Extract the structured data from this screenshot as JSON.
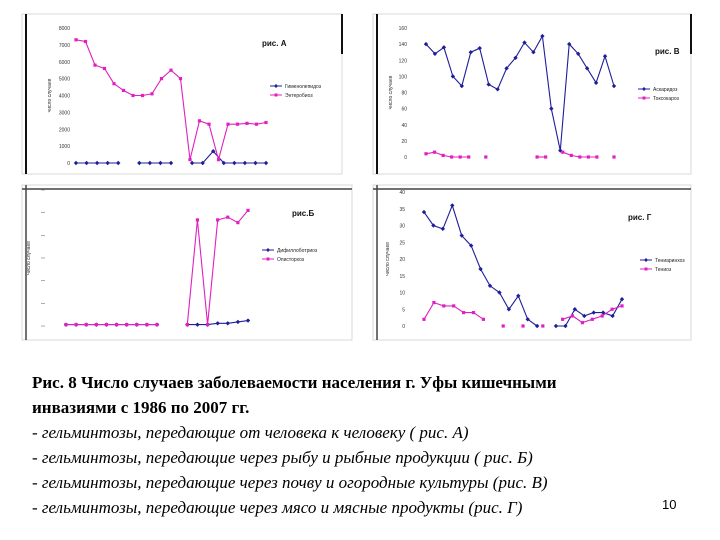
{
  "chart_data": [
    {
      "type": "line",
      "panel": "A",
      "label": "рис. А",
      "ylim": [
        0,
        8000
      ],
      "yticks": [
        "0",
        "1000",
        "2000",
        "3000",
        "4000",
        "5000",
        "6000",
        "7000",
        "8000"
      ],
      "ylabel": "число случаев",
      "series": [
        {
          "name": "Гименолепидоз",
          "color": "#1f1f9a",
          "marker": "diamond",
          "values": [
            0,
            0,
            0,
            0,
            0,
            null,
            0,
            0,
            0,
            0,
            null,
            0,
            0,
            700,
            0,
            0,
            0,
            0,
            0
          ]
        },
        {
          "name": "Энтеробиоз",
          "color": "#e020c0",
          "marker": "square",
          "values": [
            7300,
            7200,
            5800,
            5600,
            4700,
            4300,
            4000,
            4000,
            4100,
            5000,
            5500,
            5000,
            200,
            2500,
            2300,
            200,
            2300,
            2300,
            2350,
            2300,
            2400
          ]
        }
      ]
    },
    {
      "type": "line",
      "panel": "B",
      "label": "рис.Б",
      "ylim": [
        0,
        100
      ],
      "ylabel": "число случаев",
      "series": [
        {
          "name": "Дифиллоботриоз",
          "color": "#1f1f9a",
          "marker": "diamond",
          "values": [
            1,
            1,
            1,
            1,
            1,
            1,
            1,
            1,
            1,
            1,
            null,
            null,
            1,
            1,
            1,
            2,
            2,
            3,
            4
          ]
        },
        {
          "name": "Описторхоз",
          "color": "#e020c0",
          "marker": "square",
          "values": [
            1,
            1,
            1,
            1,
            1,
            1,
            1,
            1,
            1,
            1,
            null,
            null,
            1,
            78,
            1,
            78,
            80,
            76,
            85
          ]
        }
      ]
    },
    {
      "type": "line",
      "panel": "V",
      "label": "рис. В",
      "ylim": [
        0,
        160
      ],
      "yticks": [
        "0",
        "20",
        "40",
        "60",
        "80",
        "100",
        "120",
        "140",
        "160"
      ],
      "ylabel": "число случаев",
      "series": [
        {
          "name": "Аскаридоз",
          "color": "#1f1f9a",
          "marker": "diamond",
          "values": [
            140,
            128,
            136,
            100,
            88,
            130,
            135,
            90,
            84,
            110,
            123,
            142,
            130,
            150,
            60,
            8,
            140,
            128,
            110,
            92,
            125,
            88
          ]
        },
        {
          "name": "Токсокароз",
          "color": "#e020c0",
          "marker": "square",
          "values": [
            4,
            6,
            2,
            0,
            0,
            0,
            null,
            0,
            null,
            null,
            null,
            null,
            null,
            0,
            0,
            null,
            6,
            2,
            0,
            0,
            0,
            null,
            0
          ]
        }
      ]
    },
    {
      "type": "line",
      "panel": "G",
      "label": "рис. Г",
      "ylim": [
        0,
        40
      ],
      "yticks": [
        "0",
        "5",
        "10",
        "15",
        "20",
        "25",
        "30",
        "35",
        "40"
      ],
      "ylabel": "число случаев",
      "series": [
        {
          "name": "Тениаринхоз",
          "color": "#1f1f9a",
          "marker": "diamond",
          "values": [
            34,
            30,
            29,
            36,
            27,
            24,
            17,
            12,
            10,
            5,
            9,
            2,
            0,
            null,
            0,
            0,
            5,
            3,
            4,
            4,
            3,
            8
          ]
        },
        {
          "name": "Тениоз",
          "color": "#e020c0",
          "marker": "square",
          "values": [
            2,
            7,
            6,
            6,
            4,
            4,
            2,
            null,
            0,
            null,
            0,
            null,
            0,
            null,
            2,
            3,
            1,
            2,
            3,
            5,
            6
          ]
        }
      ]
    }
  ],
  "caption": {
    "line1": "Рис. 8 Число случаев заболеваемости населения г. Уфы кишечными",
    "line2": "инвазиями с    1986 по 2007 гг.",
    "item_a": "- гельминтозы, передающие от человека к человеку ( рис. А)",
    "item_b": "- гельминтозы,  передающие  через рыбу и рыбные продукции ( рис. Б)",
    "item_v": "-  гельминтозы, передающие через  почву и огородные культуры (рис. В)",
    "item_g": "- гельминтозы, передающие через мясо и мясные продукты (рис. Г)"
  },
  "page_number": "10"
}
